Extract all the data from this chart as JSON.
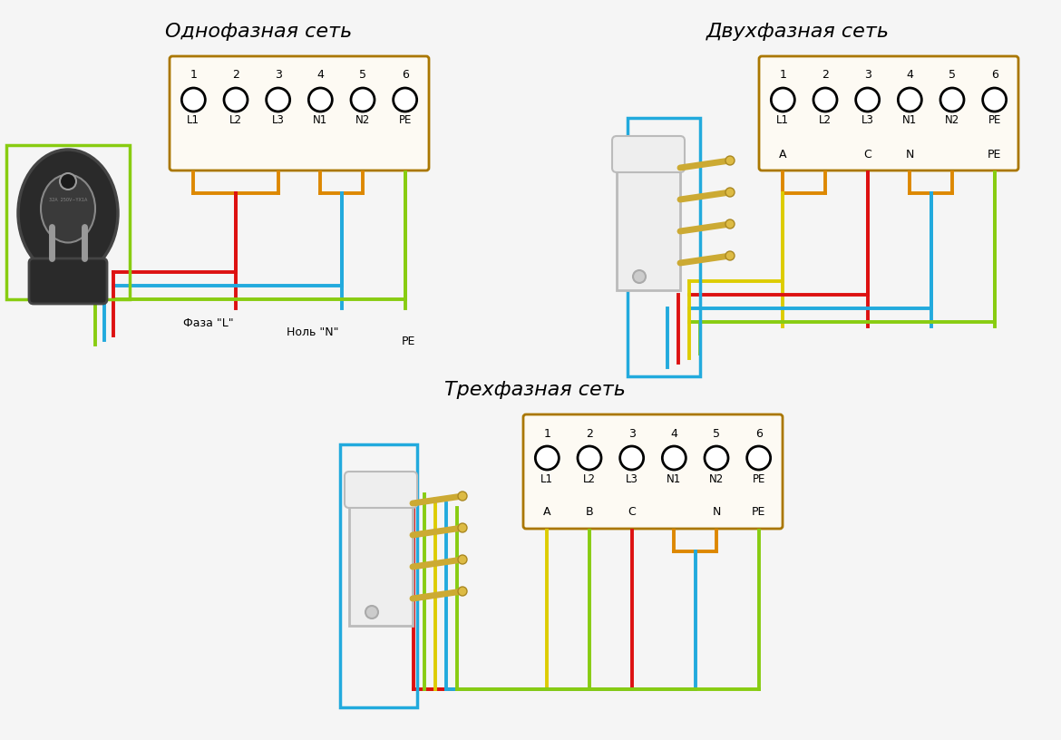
{
  "title1": "Однофазная сеть",
  "title2": "Двухфазная сеть",
  "title3": "Трехфазная сеть",
  "bg_color": "#f5f5f5",
  "colors": {
    "red": "#dd1111",
    "blue": "#22aadd",
    "green": "#88cc11",
    "yellow": "#ddcc00",
    "orange": "#dd8800",
    "box_border": "#aa7700",
    "box_fill": "#fdfaf3",
    "plug_body": "#dddddd",
    "plug_pin": "#ccaa33",
    "dark_plug": "#2a2a2a",
    "dark_plug_edge": "#555555"
  },
  "terminal_labels": [
    "1",
    "2",
    "3",
    "4",
    "5",
    "6"
  ],
  "terminal_sublabels": [
    "L1",
    "L2",
    "L3",
    "N1",
    "N2",
    "PE"
  ]
}
